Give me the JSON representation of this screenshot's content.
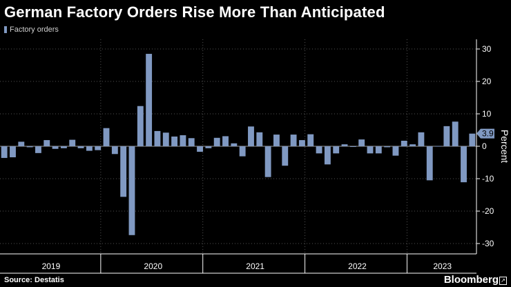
{
  "header": {
    "title": "German Factory Orders Rise More Than Anticipated"
  },
  "footer": {
    "source": "Source: Destatis",
    "brand": "Bloomberg"
  },
  "colors": {
    "bar": "#8099c2",
    "grid": "#555555",
    "axis": "#ffffff",
    "label_bg": "#8099c2"
  },
  "chart_data": {
    "type": "bar",
    "title": "German Factory Orders Rise More Than Anticipated",
    "xlabel": "",
    "ylabel": "Percent",
    "ylim": [
      -33,
      33
    ],
    "yticks": [
      30,
      20,
      10,
      0,
      -10,
      -20,
      -30
    ],
    "ytick_labels": [
      "30",
      "20",
      "10",
      "0",
      "-10",
      "-20",
      "-30"
    ],
    "legend": [
      {
        "name": "Factory orders",
        "position": "top-left"
      }
    ],
    "year_labels": [
      "2019",
      "2020",
      "2021",
      "2022",
      "2023"
    ],
    "last_value_label": "3.9",
    "series": [
      {
        "name": "Factory orders",
        "values": [
          -3.6,
          -3.4,
          1.4,
          -0.3,
          -2.1,
          1.9,
          -0.8,
          -0.6,
          2.0,
          -0.6,
          -1.4,
          -1.2,
          5.6,
          -2.4,
          -15.6,
          -27.4,
          12.4,
          28.5,
          4.7,
          4.2,
          3.0,
          3.4,
          2.5,
          -1.7,
          -0.6,
          2.6,
          3.1,
          0.9,
          -3.1,
          6.1,
          4.3,
          -9.5,
          3.6,
          -6.0,
          3.6,
          1.9,
          3.7,
          -2.2,
          -5.6,
          -2.2,
          0.6,
          -0.2,
          2.1,
          -2.2,
          -2.2,
          -0.3,
          -2.9,
          1.7,
          0.6,
          4.3,
          -10.5,
          0.1,
          6.2,
          7.6,
          -11.1,
          3.9
        ]
      }
    ]
  }
}
